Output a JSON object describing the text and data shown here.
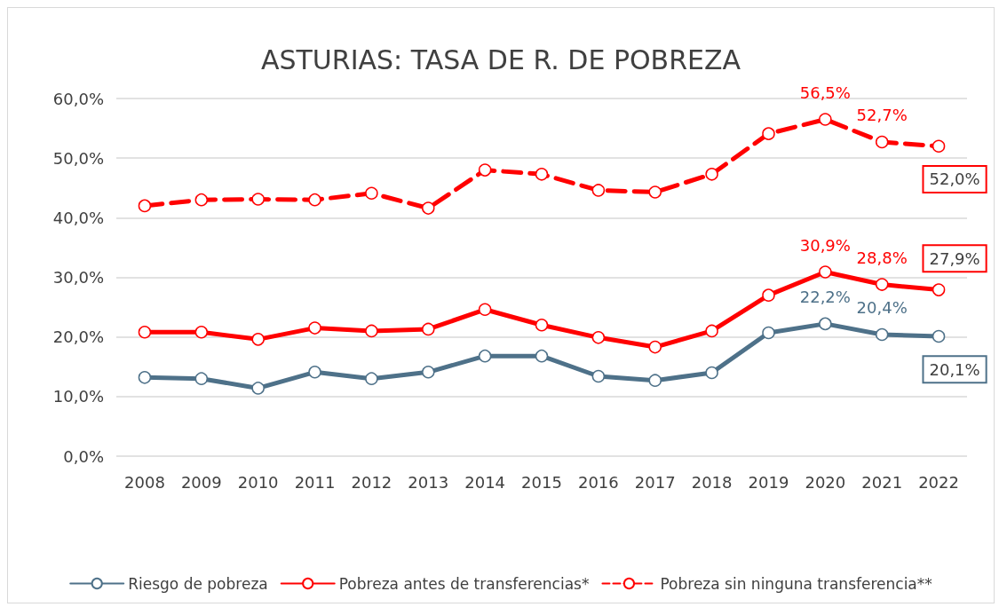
{
  "chart_data": {
    "type": "line",
    "title": "ASTURIAS: TASA DE R. DE POBREZA",
    "categories": [
      "2008",
      "2009",
      "2010",
      "2011",
      "2012",
      "2013",
      "2014",
      "2015",
      "2016",
      "2017",
      "2018",
      "2019",
      "2020",
      "2021",
      "2022"
    ],
    "series": [
      {
        "name": "Riesgo de pobreza",
        "color": "#4e7189",
        "values": [
          13.2,
          13.0,
          11.4,
          14.1,
          13.0,
          14.1,
          16.8,
          16.8,
          13.4,
          12.7,
          14.0,
          20.7,
          22.2,
          20.4,
          20.1
        ],
        "value_labels": [
          null,
          null,
          null,
          null,
          null,
          null,
          null,
          null,
          null,
          null,
          null,
          null,
          "22,2%",
          "20,4%",
          "20,1%"
        ]
      },
      {
        "name": "Pobreza antes de transferencias*",
        "color": "#ff0000",
        "values": [
          20.8,
          20.8,
          19.6,
          21.5,
          21.0,
          21.3,
          24.6,
          22.0,
          19.9,
          18.3,
          21.0,
          27.0,
          30.9,
          28.8,
          27.9
        ],
        "value_labels": [
          null,
          null,
          null,
          null,
          null,
          null,
          null,
          null,
          null,
          null,
          null,
          null,
          "30,9%",
          "28,8%",
          "27,9%"
        ]
      },
      {
        "name": "Pobreza sin ninguna transferencia**",
        "color": "#ff0000",
        "line_style": "dashed",
        "values": [
          42.0,
          43.0,
          43.1,
          43.0,
          44.1,
          41.6,
          48.0,
          47.3,
          44.6,
          44.3,
          47.3,
          54.1,
          56.5,
          52.7,
          52.0
        ],
        "value_labels": [
          null,
          null,
          null,
          null,
          null,
          null,
          null,
          null,
          null,
          null,
          null,
          null,
          "56,5%",
          "52,7%",
          "52,0%"
        ]
      }
    ],
    "ylim": [
      0,
      60
    ],
    "yticks": [
      {
        "value": 0,
        "label": "0,0%"
      },
      {
        "value": 10,
        "label": "10,0%"
      },
      {
        "value": 20,
        "label": "20,0%"
      },
      {
        "value": 30,
        "label": "30,0%"
      },
      {
        "value": 40,
        "label": "40,0%"
      },
      {
        "value": 50,
        "label": "50,0%"
      },
      {
        "value": 60,
        "label": "60,0%"
      }
    ],
    "grid": "y",
    "legend": "bottom",
    "marker": "circle",
    "line_style": "solid"
  }
}
